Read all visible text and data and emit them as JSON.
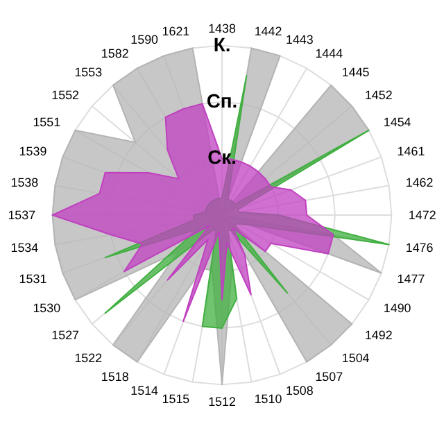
{
  "chart_data": {
    "type": "radar",
    "categories": [
      "1438",
      "1442",
      "1443",
      "1444",
      "1445",
      "1452",
      "1454",
      "1461",
      "1462",
      "1472",
      "1476",
      "1477",
      "1490",
      "1492",
      "1504",
      "1507",
      "1508",
      "1510",
      "1512",
      "1515",
      "1514",
      "1518",
      "1522",
      "1527",
      "1530",
      "1531",
      "1534",
      "1537",
      "1538",
      "1539",
      "1551",
      "1552",
      "1553",
      "1582",
      "1590",
      "1621"
    ],
    "ylim": [
      0,
      3
    ],
    "yticks": [
      {
        "value": 1,
        "label": "Ск."
      },
      {
        "value": 2,
        "label": "Сп."
      },
      {
        "value": 3,
        "label": "К."
      }
    ],
    "grid": true,
    "series": [
      {
        "color": "#b4b4b4",
        "values": [
          0,
          3,
          3,
          0,
          3,
          3,
          3,
          0,
          0,
          0,
          2,
          3,
          0,
          3,
          3,
          3,
          0,
          1,
          3,
          1,
          1,
          3,
          3,
          1,
          3,
          3,
          3,
          3,
          3,
          3,
          3,
          2,
          3,
          3,
          3,
          3
        ]
      },
      {
        "color": "#40b040",
        "values": [
          0.3,
          2.5,
          0.3,
          0.3,
          0.3,
          0.3,
          3,
          0.3,
          0.3,
          1,
          3,
          0.5,
          0.3,
          0.3,
          1.8,
          0.3,
          0.3,
          1.5,
          2,
          2,
          0.3,
          0.3,
          0.5,
          2.7,
          0.5,
          2.2,
          0.5,
          0.5,
          0.3,
          0.3,
          0.3,
          0.3,
          0.3,
          0.3,
          0.3,
          0.3
        ]
      },
      {
        "color": "#c040c0",
        "values": [
          1,
          1,
          1,
          1,
          1,
          1,
          1,
          1.3,
          1.5,
          1.5,
          2,
          2,
          1,
          1,
          0.3,
          0.8,
          1.5,
          0.5,
          1.5,
          0.3,
          2,
          0.5,
          1.5,
          0.3,
          2,
          1.5,
          2,
          3,
          2.2,
          2.2,
          1.5,
          1,
          1.5,
          2,
          2,
          2
        ]
      }
    ]
  }
}
